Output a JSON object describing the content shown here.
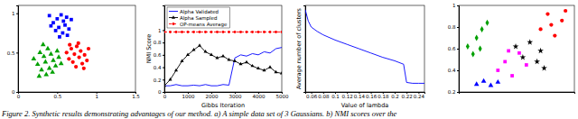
{
  "chart_data": [
    {
      "type": "scatter",
      "xlim": [
        0,
        1.5
      ],
      "xticks": [
        0,
        0.5,
        1,
        1.5
      ],
      "ylim": [
        0,
        1.1
      ],
      "yticks": [
        0,
        0.5,
        1
      ],
      "series": [
        {
          "color": "#0000ff",
          "marker": "square",
          "x": [
            0.4,
            0.45,
            0.5,
            0.52,
            0.55,
            0.58,
            0.6,
            0.62,
            0.48,
            0.65,
            0.57,
            0.42,
            0.68,
            0.53,
            0.63
          ],
          "values": [
            0.97,
            0.88,
            0.93,
            0.82,
            0.98,
            0.9,
            0.85,
            0.95,
            0.78,
            0.8,
            0.75,
            0.84,
            0.92,
            0.7,
            0.72
          ]
        },
        {
          "color": "#00a000",
          "marker": "triangle",
          "x": [
            0.2,
            0.25,
            0.28,
            0.3,
            0.33,
            0.35,
            0.38,
            0.4,
            0.42,
            0.45,
            0.48,
            0.5,
            0.32,
            0.36,
            0.44,
            0.52,
            0.27,
            0.55
          ],
          "values": [
            0.42,
            0.35,
            0.5,
            0.28,
            0.45,
            0.38,
            0.55,
            0.3,
            0.48,
            0.4,
            0.33,
            0.52,
            0.6,
            0.22,
            0.25,
            0.44,
            0.2,
            0.36
          ]
        },
        {
          "color": "#ff0000",
          "marker": "circle",
          "x": [
            0.62,
            0.65,
            0.68,
            0.7,
            0.72,
            0.75,
            0.78,
            0.8,
            0.82,
            0.85,
            0.88,
            0.74,
            0.66,
            0.9,
            0.77,
            0.84
          ],
          "values": [
            0.5,
            0.42,
            0.55,
            0.38,
            0.48,
            0.58,
            0.44,
            0.52,
            0.36,
            0.47,
            0.4,
            0.32,
            0.6,
            0.55,
            0.62,
            0.3
          ]
        }
      ]
    },
    {
      "type": "line",
      "xlabel": "Gibbs Iteration",
      "ylabel": "NMI Score",
      "x": [
        0,
        250,
        500,
        750,
        1000,
        1250,
        1500,
        1750,
        2000,
        2250,
        2500,
        2750,
        3000,
        3250,
        3500,
        3750,
        4000,
        4250,
        4500,
        4750,
        5000
      ],
      "xlim": [
        0,
        5000
      ],
      "xticks": [
        0,
        1000,
        2000,
        3000,
        4000,
        5000
      ],
      "ylim": [
        0,
        1.4
      ],
      "yticks": [
        0,
        0.2,
        0.4,
        0.6,
        0.8,
        1
      ],
      "legend": "upper left",
      "series": [
        {
          "name": "Alpha Validated",
          "color": "#0000ff",
          "line_style": "solid",
          "values": [
            0.1,
            0.1,
            0.12,
            0.1,
            0.1,
            0.11,
            0.1,
            0.12,
            0.1,
            0.1,
            0.12,
            0.11,
            0.55,
            0.6,
            0.58,
            0.62,
            0.6,
            0.65,
            0.63,
            0.7,
            0.72
          ]
        },
        {
          "name": "Alpha Sampled",
          "color": "#000000",
          "line_style": "solid",
          "marker": "triangle",
          "values": [
            0.1,
            0.2,
            0.35,
            0.5,
            0.6,
            0.68,
            0.75,
            0.65,
            0.6,
            0.55,
            0.58,
            0.52,
            0.5,
            0.45,
            0.48,
            0.42,
            0.38,
            0.35,
            0.4,
            0.32,
            0.3
          ]
        },
        {
          "name": "OP-means Average",
          "color": "#ff0000",
          "line_style": "dashed",
          "marker": "circle",
          "values": [
            0.97,
            0.97,
            0.97,
            0.97,
            0.97,
            0.97,
            0.97,
            0.97,
            0.97,
            0.97,
            0.97,
            0.97,
            0.97,
            0.97,
            0.97,
            0.97,
            0.97,
            0.97,
            0.97,
            0.97,
            0.97
          ]
        }
      ]
    },
    {
      "type": "line",
      "xlabel": "Value of lambda",
      "ylabel": "Average number of clusters",
      "xlim": [
        0.05,
        0.25
      ],
      "xticks": [
        0.06,
        0.08,
        0.1,
        0.12,
        0.14,
        0.16,
        0.18,
        0.2,
        0.22,
        0.24
      ],
      "ylim": [
        0,
        10
      ],
      "tick_labels": "x",
      "series": [
        {
          "color": "#0000ff",
          "line_style": "solid",
          "x": [
            0.05,
            0.055,
            0.06,
            0.07,
            0.08,
            0.1,
            0.12,
            0.14,
            0.16,
            0.18,
            0.2,
            0.215,
            0.22,
            0.23,
            0.24,
            0.25
          ],
          "values": [
            9.5,
            8.2,
            7.5,
            7,
            6.6,
            6,
            5.5,
            5,
            4.5,
            4,
            3.6,
            3.2,
            1.1,
            1,
            1,
            1
          ]
        }
      ]
    },
    {
      "type": "scatter",
      "xlim": [
        0.4,
        1.05
      ],
      "ylim": [
        0.2,
        1
      ],
      "yticks": [
        0.2,
        0.4,
        0.6,
        0.8,
        1
      ],
      "tick_labels": "y",
      "series": [
        {
          "color": "#0000ff",
          "marker": "triangle",
          "x": [
            0.5,
            0.54,
            0.58,
            0.62
          ],
          "values": [
            0.27,
            0.3,
            0.26,
            0.29
          ]
        },
        {
          "color": "#00a000",
          "marker": "diamond",
          "x": [
            0.45,
            0.48,
            0.5,
            0.53,
            0.56,
            0.52
          ],
          "values": [
            0.62,
            0.55,
            0.7,
            0.78,
            0.84,
            0.6
          ]
        },
        {
          "color": "#ff00ff",
          "marker": "square",
          "x": [
            0.62,
            0.66,
            0.7,
            0.74,
            0.78,
            0.68
          ],
          "values": [
            0.4,
            0.48,
            0.35,
            0.56,
            0.45,
            0.58
          ]
        },
        {
          "color": "#000000",
          "marker": "star",
          "x": [
            0.72,
            0.76,
            0.8,
            0.84,
            0.86,
            0.88
          ],
          "values": [
            0.62,
            0.52,
            0.66,
            0.48,
            0.58,
            0.42
          ]
        },
        {
          "color": "#ff0000",
          "marker": "circle",
          "x": [
            0.86,
            0.9,
            0.94,
            0.98,
            1.0,
            0.92
          ],
          "values": [
            0.78,
            0.92,
            0.72,
            0.86,
            0.95,
            0.82
          ]
        }
      ]
    }
  ],
  "caption": "Figure 2. Synthetic results demonstrating advantages of our method. a) A simple data set of 3 Gaussians. b) NMI scores over the"
}
